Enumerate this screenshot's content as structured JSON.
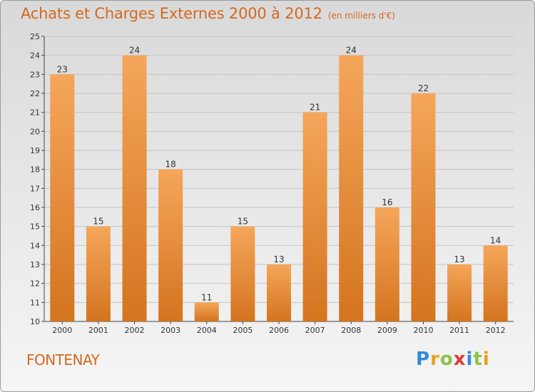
{
  "header": {
    "title": "Achats et Charges Externes 2000 à 2012",
    "subtitle": "(en milliers d'€)"
  },
  "location": "FONTENAY",
  "logo": {
    "text": "Proxiti",
    "letters": [
      {
        "ch": "P",
        "color": "#2e8bd8"
      },
      {
        "ch": "r",
        "color": "#e8a020"
      },
      {
        "ch": "o",
        "color": "#8bc34a"
      },
      {
        "ch": "x",
        "color": "#e53935"
      },
      {
        "ch": "i",
        "color": "#2e8bd8"
      },
      {
        "ch": "t",
        "color": "#8bc34a"
      },
      {
        "ch": "i",
        "color": "#e8a020"
      }
    ]
  },
  "colors": {
    "bar_light": "#f5a65a",
    "bar_dark": "#d4741f",
    "accent": "#d2691e"
  },
  "chart_data": {
    "type": "bar",
    "title": "Achats et Charges Externes 2000 à 2012",
    "subtitle": "(en milliers d'€)",
    "categories": [
      "2000",
      "2001",
      "2002",
      "2003",
      "2004",
      "2005",
      "2006",
      "2007",
      "2008",
      "2009",
      "2010",
      "2011",
      "2012"
    ],
    "values": [
      23,
      15,
      24,
      18,
      11,
      15,
      13,
      21,
      24,
      16,
      22,
      13,
      14
    ],
    "ylim": [
      10,
      25
    ],
    "yticks": [
      10,
      11,
      12,
      13,
      14,
      15,
      16,
      17,
      18,
      19,
      20,
      21,
      22,
      23,
      24,
      25
    ],
    "grid": true,
    "xlabel": "",
    "ylabel": ""
  }
}
